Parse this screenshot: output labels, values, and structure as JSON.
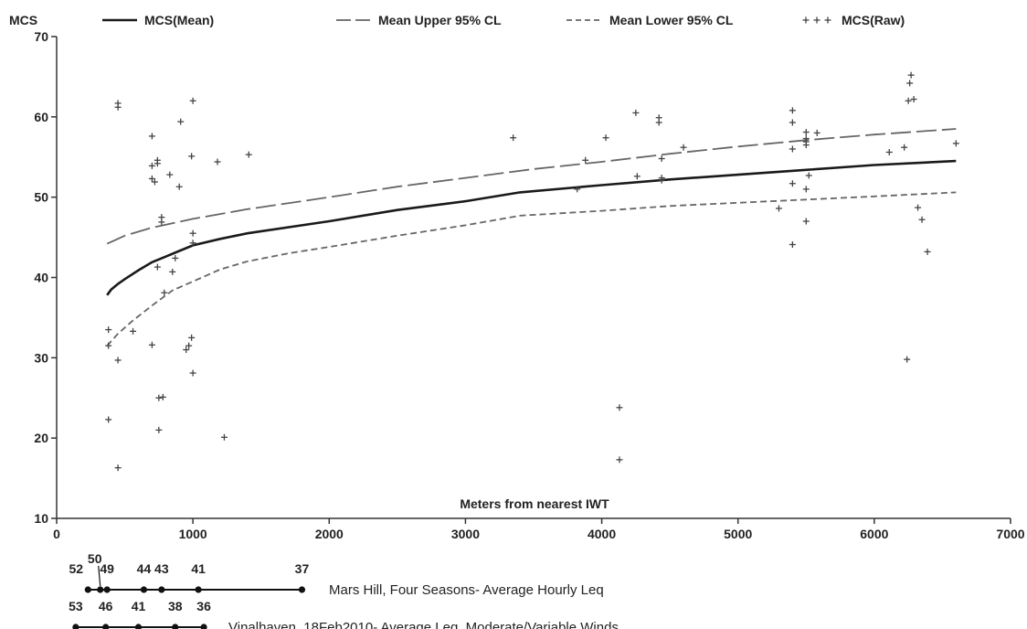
{
  "chart_data": {
    "type": "line",
    "title": "",
    "xlabel": "Meters from nearest IWT",
    "ylabel": "MCS",
    "xlim": [
      0,
      7000
    ],
    "ylim": [
      10,
      70
    ],
    "xticks": [
      0,
      1000,
      2000,
      3000,
      4000,
      5000,
      6000,
      7000
    ],
    "yticks": [
      10,
      20,
      30,
      40,
      50,
      60,
      70
    ],
    "legend_position": "top",
    "series": [
      {
        "name": "MCS(Mean)",
        "style": "solid",
        "points": [
          [
            370,
            37.8
          ],
          [
            400,
            38.5
          ],
          [
            450,
            39.2
          ],
          [
            500,
            39.8
          ],
          [
            600,
            40.9
          ],
          [
            700,
            41.9
          ],
          [
            800,
            42.6
          ],
          [
            900,
            43.3
          ],
          [
            1000,
            44.0
          ],
          [
            1200,
            44.8
          ],
          [
            1400,
            45.5
          ],
          [
            2000,
            47.0
          ],
          [
            2500,
            48.4
          ],
          [
            3000,
            49.5
          ],
          [
            3400,
            50.6
          ],
          [
            4000,
            51.5
          ],
          [
            4500,
            52.2
          ],
          [
            5000,
            52.8
          ],
          [
            5500,
            53.4
          ],
          [
            6000,
            54.0
          ],
          [
            6600,
            54.5
          ]
        ]
      },
      {
        "name": "Mean Upper 95% CL",
        "style": "long-dash",
        "points": [
          [
            370,
            44.2
          ],
          [
            500,
            45.2
          ],
          [
            700,
            46.2
          ],
          [
            1000,
            47.3
          ],
          [
            1400,
            48.5
          ],
          [
            2000,
            50.0
          ],
          [
            2500,
            51.3
          ],
          [
            3000,
            52.4
          ],
          [
            3500,
            53.5
          ],
          [
            4000,
            54.4
          ],
          [
            4500,
            55.4
          ],
          [
            5000,
            56.3
          ],
          [
            5500,
            57.1
          ],
          [
            6000,
            57.8
          ],
          [
            6600,
            58.5
          ]
        ]
      },
      {
        "name": "Mean Lower 95% CL",
        "style": "short-dash",
        "points": [
          [
            370,
            31.5
          ],
          [
            450,
            33.0
          ],
          [
            550,
            34.5
          ],
          [
            700,
            36.5
          ],
          [
            850,
            38.4
          ],
          [
            1000,
            39.5
          ],
          [
            1200,
            41.0
          ],
          [
            1400,
            42.0
          ],
          [
            1700,
            43.0
          ],
          [
            2000,
            43.8
          ],
          [
            2500,
            45.2
          ],
          [
            3000,
            46.5
          ],
          [
            3400,
            47.7
          ],
          [
            4000,
            48.3
          ],
          [
            4500,
            48.9
          ],
          [
            5000,
            49.3
          ],
          [
            5500,
            49.7
          ],
          [
            6000,
            50.1
          ],
          [
            6600,
            50.6
          ]
        ]
      },
      {
        "name": "MCS(Raw)",
        "style": "plus-markers",
        "points": [
          [
            380,
            33.5
          ],
          [
            380,
            31.5
          ],
          [
            380,
            22.3
          ],
          [
            450,
            61.7
          ],
          [
            450,
            61.2
          ],
          [
            450,
            29.7
          ],
          [
            450,
            16.3
          ],
          [
            560,
            33.3
          ],
          [
            700,
            57.6
          ],
          [
            700,
            53.9
          ],
          [
            700,
            52.3
          ],
          [
            700,
            31.6
          ],
          [
            720,
            51.9
          ],
          [
            740,
            54.2
          ],
          [
            740,
            54.6
          ],
          [
            740,
            41.3
          ],
          [
            750,
            25.0
          ],
          [
            750,
            21.0
          ],
          [
            770,
            47.5
          ],
          [
            770,
            46.9
          ],
          [
            780,
            25.1
          ],
          [
            790,
            38.1
          ],
          [
            830,
            52.8
          ],
          [
            850,
            40.7
          ],
          [
            870,
            42.4
          ],
          [
            900,
            51.3
          ],
          [
            910,
            59.4
          ],
          [
            950,
            31.0
          ],
          [
            970,
            31.5
          ],
          [
            990,
            32.5
          ],
          [
            990,
            55.1
          ],
          [
            1000,
            62.0
          ],
          [
            1000,
            45.5
          ],
          [
            1000,
            44.3
          ],
          [
            1000,
            28.1
          ],
          [
            1180,
            54.4
          ],
          [
            1230,
            20.1
          ],
          [
            1410,
            55.3
          ],
          [
            3350,
            57.4
          ],
          [
            3820,
            51.0
          ],
          [
            3880,
            54.6
          ],
          [
            4030,
            57.4
          ],
          [
            4130,
            23.8
          ],
          [
            4130,
            17.3
          ],
          [
            4250,
            60.5
          ],
          [
            4260,
            52.6
          ],
          [
            4420,
            59.9
          ],
          [
            4420,
            59.3
          ],
          [
            4440,
            54.8
          ],
          [
            4440,
            52.4
          ],
          [
            4440,
            52.1
          ],
          [
            4600,
            56.2
          ],
          [
            5300,
            48.6
          ],
          [
            5400,
            60.8
          ],
          [
            5400,
            59.3
          ],
          [
            5400,
            56.0
          ],
          [
            5400,
            51.7
          ],
          [
            5400,
            44.1
          ],
          [
            5500,
            58.1
          ],
          [
            5500,
            57.3
          ],
          [
            5500,
            56.9
          ],
          [
            5500,
            56.5
          ],
          [
            5500,
            51.0
          ],
          [
            5500,
            47.0
          ],
          [
            5520,
            52.7
          ],
          [
            5580,
            58.0
          ],
          [
            6110,
            55.6
          ],
          [
            6220,
            56.2
          ],
          [
            6240,
            29.8
          ],
          [
            6250,
            62.0
          ],
          [
            6260,
            64.2
          ],
          [
            6270,
            65.2
          ],
          [
            6290,
            62.2
          ],
          [
            6320,
            48.7
          ],
          [
            6350,
            47.2
          ],
          [
            6390,
            43.2
          ],
          [
            6600,
            56.7
          ]
        ]
      }
    ],
    "annotations": [
      {
        "label": "Mars Hill, Four Seasons- Average Hourly Leq",
        "markers": [
          {
            "x": 230,
            "text": "52"
          },
          {
            "x": 320,
            "text": "50"
          },
          {
            "x": 370,
            "text": "49"
          },
          {
            "x": 640,
            "text": "44"
          },
          {
            "x": 770,
            "text": "43"
          },
          {
            "x": 1040,
            "text": "41"
          },
          {
            "x": 1800,
            "text": "37"
          }
        ]
      },
      {
        "label": "Vinalhaven, 18Feb2010- Average Leq, Moderate/Variable Winds",
        "markers": [
          {
            "x": 140,
            "text": "53"
          },
          {
            "x": 360,
            "text": "46"
          },
          {
            "x": 600,
            "text": "41"
          },
          {
            "x": 870,
            "text": "38"
          },
          {
            "x": 1080,
            "text": "36"
          }
        ]
      }
    ]
  }
}
